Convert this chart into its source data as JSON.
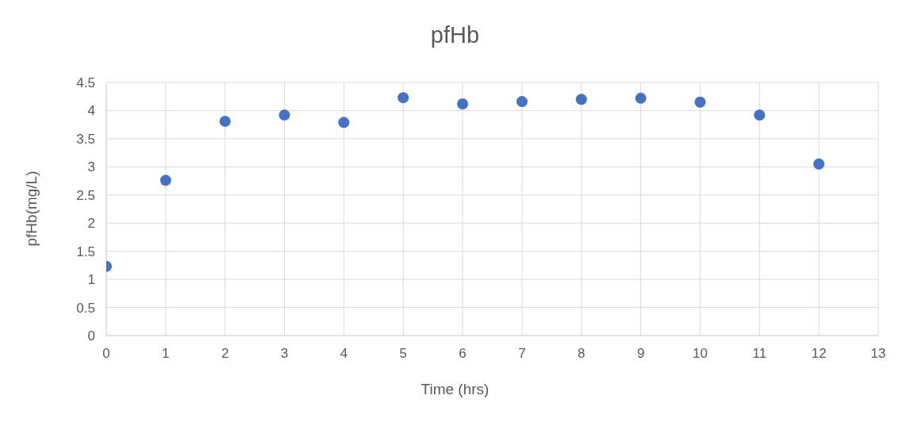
{
  "chart_data": {
    "type": "scatter",
    "title": "pfHb",
    "xlabel": "Time (hrs)",
    "ylabel": "pfHb(mg/L)",
    "x": [
      0,
      1,
      2,
      3,
      4,
      5,
      6,
      7,
      8,
      9,
      10,
      11,
      12
    ],
    "series": [
      {
        "color": "#4472c4",
        "values": [
          1.23,
          2.76,
          3.81,
          3.92,
          3.79,
          4.23,
          4.12,
          4.16,
          4.2,
          4.22,
          4.15,
          3.92,
          3.05
        ]
      }
    ],
    "xlim": [
      0,
      13
    ],
    "xticks": [
      0,
      1,
      2,
      3,
      4,
      5,
      6,
      7,
      8,
      9,
      10,
      11,
      12,
      13
    ],
    "ylim": [
      0,
      4.5
    ],
    "yticks": [
      0,
      0.5,
      1,
      1.5,
      2,
      2.5,
      3,
      3.5,
      4,
      4.5
    ],
    "grid": true,
    "marker": "circle"
  }
}
